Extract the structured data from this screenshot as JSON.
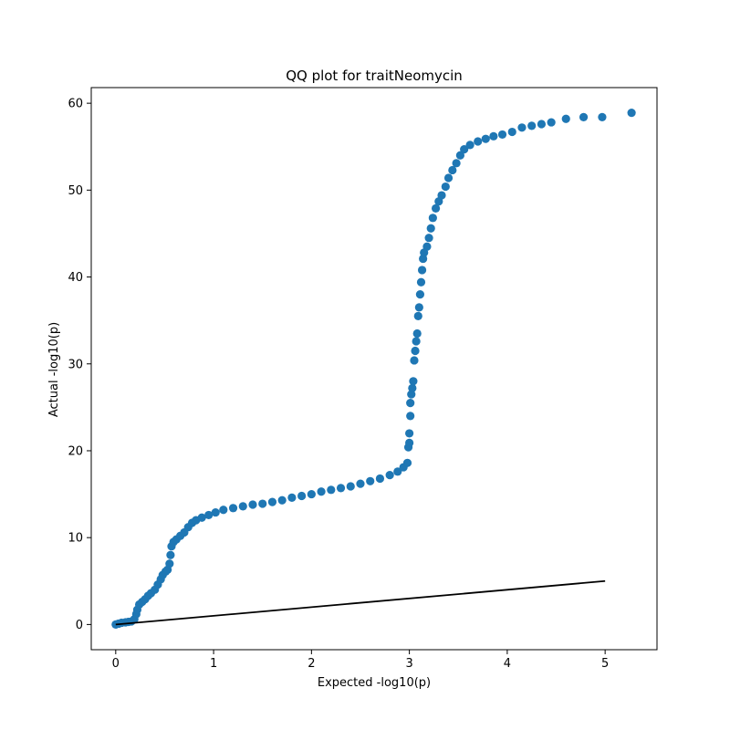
{
  "chart_data": {
    "type": "scatter",
    "title": "QQ plot for traitNeomycin",
    "xlabel": "Expected -log10(p)",
    "ylabel": "Actual -log10(p)",
    "xlim": [
      -0.25,
      5.53
    ],
    "ylim": [
      -2.9,
      61.8
    ],
    "xticks": [
      0,
      1,
      2,
      3,
      4,
      5
    ],
    "yticks": [
      0,
      10,
      20,
      30,
      40,
      50,
      60
    ],
    "grid": false,
    "marker_color": "#1f77b4",
    "line_color": "#000000",
    "reference_line": {
      "x": [
        0,
        5
      ],
      "y": [
        0,
        5
      ]
    },
    "series": [
      {
        "type": "scatter",
        "points": [
          [
            0.0,
            0.0
          ],
          [
            0.03,
            0.1
          ],
          [
            0.06,
            0.2
          ],
          [
            0.1,
            0.25
          ],
          [
            0.13,
            0.3
          ],
          [
            0.16,
            0.35
          ],
          [
            0.19,
            0.6
          ],
          [
            0.21,
            1.2
          ],
          [
            0.22,
            1.7
          ],
          [
            0.24,
            2.3
          ],
          [
            0.27,
            2.6
          ],
          [
            0.3,
            2.9
          ],
          [
            0.33,
            3.3
          ],
          [
            0.36,
            3.6
          ],
          [
            0.4,
            4.0
          ],
          [
            0.43,
            4.6
          ],
          [
            0.46,
            5.2
          ],
          [
            0.48,
            5.7
          ],
          [
            0.51,
            6.1
          ],
          [
            0.53,
            6.3
          ],
          [
            0.55,
            7.0
          ],
          [
            0.56,
            8.0
          ],
          [
            0.57,
            9.0
          ],
          [
            0.59,
            9.5
          ],
          [
            0.62,
            9.8
          ],
          [
            0.66,
            10.2
          ],
          [
            0.7,
            10.6
          ],
          [
            0.74,
            11.2
          ],
          [
            0.78,
            11.7
          ],
          [
            0.82,
            12.0
          ],
          [
            0.88,
            12.3
          ],
          [
            0.95,
            12.6
          ],
          [
            1.02,
            12.9
          ],
          [
            1.1,
            13.2
          ],
          [
            1.2,
            13.4
          ],
          [
            1.3,
            13.6
          ],
          [
            1.4,
            13.8
          ],
          [
            1.5,
            13.9
          ],
          [
            1.6,
            14.1
          ],
          [
            1.7,
            14.3
          ],
          [
            1.8,
            14.6
          ],
          [
            1.9,
            14.8
          ],
          [
            2.0,
            15.0
          ],
          [
            2.1,
            15.3
          ],
          [
            2.2,
            15.5
          ],
          [
            2.3,
            15.7
          ],
          [
            2.4,
            15.9
          ],
          [
            2.5,
            16.2
          ],
          [
            2.6,
            16.5
          ],
          [
            2.7,
            16.8
          ],
          [
            2.8,
            17.2
          ],
          [
            2.88,
            17.6
          ],
          [
            2.94,
            18.1
          ],
          [
            2.98,
            18.6
          ],
          [
            2.99,
            20.4
          ],
          [
            3.0,
            20.9
          ],
          [
            3.0,
            22.0
          ],
          [
            3.01,
            24.0
          ],
          [
            3.01,
            25.5
          ],
          [
            3.02,
            26.5
          ],
          [
            3.03,
            27.2
          ],
          [
            3.04,
            28.0
          ],
          [
            3.05,
            30.4
          ],
          [
            3.06,
            31.5
          ],
          [
            3.07,
            32.6
          ],
          [
            3.08,
            33.5
          ],
          [
            3.09,
            35.5
          ],
          [
            3.1,
            36.5
          ],
          [
            3.11,
            38.0
          ],
          [
            3.12,
            39.4
          ],
          [
            3.13,
            40.8
          ],
          [
            3.14,
            42.1
          ],
          [
            3.15,
            42.8
          ],
          [
            3.18,
            43.5
          ],
          [
            3.2,
            44.5
          ],
          [
            3.22,
            45.6
          ],
          [
            3.24,
            46.8
          ],
          [
            3.27,
            47.9
          ],
          [
            3.3,
            48.7
          ],
          [
            3.33,
            49.4
          ],
          [
            3.37,
            50.4
          ],
          [
            3.4,
            51.4
          ],
          [
            3.44,
            52.3
          ],
          [
            3.48,
            53.1
          ],
          [
            3.52,
            54.0
          ],
          [
            3.56,
            54.7
          ],
          [
            3.62,
            55.2
          ],
          [
            3.7,
            55.6
          ],
          [
            3.78,
            55.9
          ],
          [
            3.86,
            56.2
          ],
          [
            3.95,
            56.4
          ],
          [
            4.05,
            56.7
          ],
          [
            4.15,
            57.2
          ],
          [
            4.25,
            57.4
          ],
          [
            4.35,
            57.6
          ],
          [
            4.45,
            57.8
          ],
          [
            4.6,
            58.2
          ],
          [
            4.78,
            58.4
          ],
          [
            4.97,
            58.4
          ],
          [
            5.27,
            58.9
          ]
        ]
      }
    ]
  }
}
